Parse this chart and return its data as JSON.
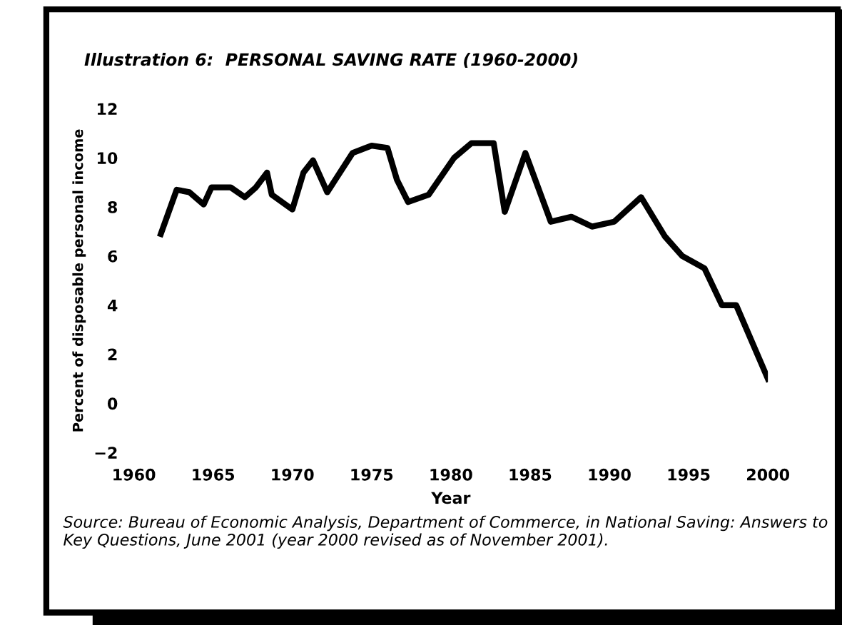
{
  "chart_data": {
    "type": "line",
    "title": "Illustration 6:  PERSONAL SAVING RATE (1960-2000)",
    "xlabel": "Year",
    "ylabel": "Percent of disposable personal income",
    "annotations": [
      "Source: Bureau of Economic Analysis, Department of Commerce, in National Saving: Answers to Key Questions, June 2001 (year 2000 revised as of November 2001)."
    ],
    "series": [
      {
        "color": "#000000",
        "x": [
          1961.7,
          1962.7,
          1963.5,
          1964.4,
          1964.9,
          1966.1,
          1967.0,
          1967.7,
          1968.4,
          1968.7,
          1970.0,
          1970.7,
          1971.3,
          1972.2,
          1973.8,
          1975.0,
          1976.0,
          1976.6,
          1977.3,
          1978.6,
          1980.2,
          1981.3,
          1981.7,
          1982.7,
          1983.4,
          1984.7,
          1986.3,
          1987.6,
          1988.9,
          1990.3,
          1992.0,
          1993.5,
          1994.6,
          1996.0,
          1997.1,
          1998.0,
          2000.0
        ],
        "values": [
          6.9,
          8.7,
          8.6,
          8.1,
          8.8,
          8.8,
          8.4,
          8.8,
          9.4,
          8.5,
          7.9,
          9.4,
          9.9,
          8.6,
          10.2,
          10.5,
          10.4,
          9.1,
          8.2,
          8.5,
          10.0,
          10.6,
          10.6,
          10.6,
          7.8,
          10.2,
          7.4,
          7.6,
          7.2,
          7.4,
          8.4,
          6.8,
          6.0,
          5.5,
          4.0,
          4.0,
          1.0
        ]
      }
    ],
    "xlim": [
      1960,
      2000
    ],
    "xticks": [
      1960,
      1965,
      1970,
      1975,
      1980,
      1985,
      1990,
      1995,
      2000
    ],
    "ylim": [
      -2,
      12
    ],
    "yticks": [
      -2,
      0,
      2,
      4,
      6,
      8,
      10,
      12
    ],
    "grid": false,
    "legend": false,
    "marker": "none",
    "line_style": "solid"
  }
}
